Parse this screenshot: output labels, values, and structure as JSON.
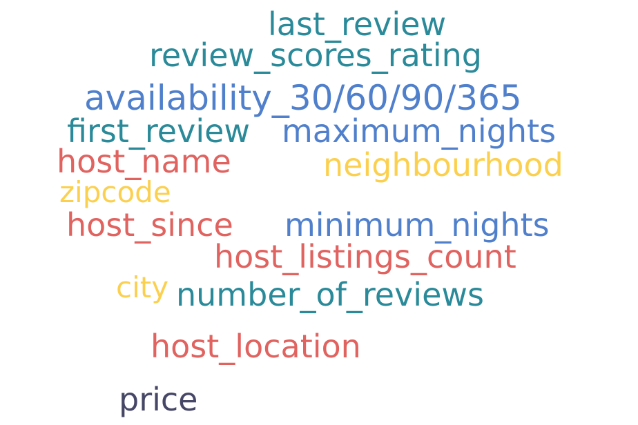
{
  "palette": {
    "teal": "#2a8a99",
    "blue": "#5080cc",
    "red": "#e06360",
    "yellow": "#fcd04f",
    "navy": "#464766"
  },
  "words": [
    {
      "id": "last_review",
      "text": "last_review",
      "color": "teal"
    },
    {
      "id": "review_scores_rating",
      "text": "review_scores_rating",
      "color": "teal"
    },
    {
      "id": "availability",
      "text": "availability_30/60/90/365",
      "color": "blue"
    },
    {
      "id": "first_review",
      "text": "first_review",
      "color": "teal"
    },
    {
      "id": "maximum_nights",
      "text": "maximum_nights",
      "color": "blue"
    },
    {
      "id": "host_name",
      "text": "host_name",
      "color": "red"
    },
    {
      "id": "neighbourhood",
      "text": "neighbourhood",
      "color": "yellow"
    },
    {
      "id": "zipcode",
      "text": "zipcode",
      "color": "yellow"
    },
    {
      "id": "host_since",
      "text": "host_since",
      "color": "red"
    },
    {
      "id": "minimum_nights",
      "text": "minimum_nights",
      "color": "blue"
    },
    {
      "id": "host_listings_count",
      "text": "host_listings_count",
      "color": "red"
    },
    {
      "id": "city",
      "text": "city",
      "color": "yellow"
    },
    {
      "id": "number_of_reviews",
      "text": "number_of_reviews",
      "color": "teal"
    },
    {
      "id": "host_location",
      "text": "host_location",
      "color": "red"
    },
    {
      "id": "price",
      "text": "price",
      "color": "navy"
    }
  ]
}
